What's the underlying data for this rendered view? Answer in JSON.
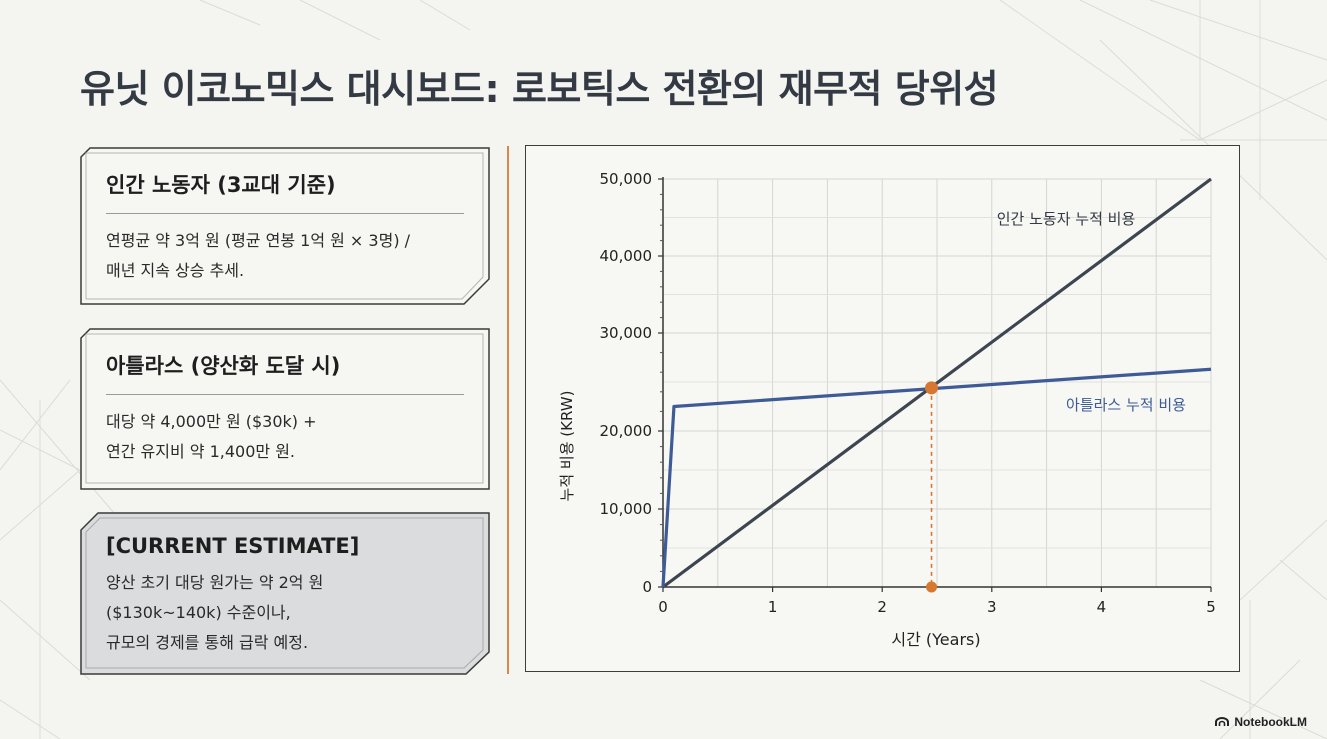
{
  "page": {
    "title": "유닛 이코노믹스 대시보드: 로보틱스 전환의 재무적 당위성"
  },
  "cards": [
    {
      "id": "human",
      "title": "인간 노동자 (3교대 기준)",
      "body": "연평균 약 3억 원 (평균 연봉 1억 원 × 3명) /\n매년 지속 상승 추세."
    },
    {
      "id": "atlas",
      "title": "아틀라스 (양산화 도달 시)",
      "body": "대당 약 4,000만 원 ($30k) +\n연간 유지비 약 1,400만 원."
    },
    {
      "id": "estimate",
      "title": "[CURRENT ESTIMATE]",
      "body": "양산 초기 대당 원가는 약 2억 원\n($130k~140k) 수준이나,\n규모의 경제를 통해 급락 예정."
    }
  ],
  "chart_data": {
    "type": "line",
    "xlabel": "시간 (Years)",
    "ylabel": "누적 비용 (KRW)",
    "xlim": [
      0,
      5
    ],
    "x_ticks": [
      0,
      1,
      2,
      3,
      4,
      5
    ],
    "y_ticks": [
      0,
      10000,
      20000,
      30000,
      40000,
      50000
    ],
    "y_tick_labels": [
      "0",
      "10,000",
      "20,000",
      "30,000",
      "40,000",
      "50,000"
    ],
    "grid": true,
    "series": [
      {
        "name": "인간 노동자 누적 비용",
        "color": "#3d4550",
        "points": [
          [
            0,
            0
          ],
          [
            5,
            50000
          ]
        ]
      },
      {
        "name": "아틀라스 누적 비용",
        "color": "#3e5b96",
        "points": [
          [
            0,
            0
          ],
          [
            0.1,
            22500
          ],
          [
            5,
            26300
          ]
        ]
      }
    ],
    "breakeven": {
      "x": 2.45,
      "y": 24400,
      "color": "#d8772f"
    }
  },
  "brand": {
    "label": "NotebookLM"
  }
}
